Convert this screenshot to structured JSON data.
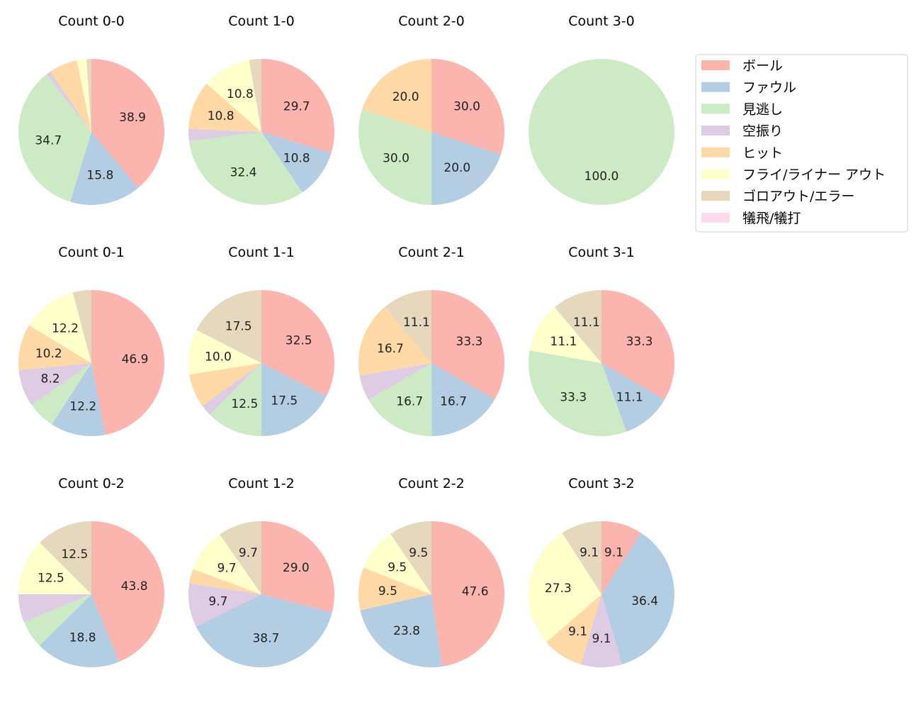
{
  "chart_data": {
    "type": "pie",
    "legend": {
      "placement": "top-right",
      "entries": [
        "ボール",
        "ファウル",
        "見逃し",
        "空振り",
        "ヒット",
        "フライ/ライナー アウト",
        "ゴロアウト/エラー",
        "犠飛/犠打"
      ]
    },
    "colors": [
      "#fbb4ae",
      "#b3cde3",
      "#ccebc5",
      "#decbe4",
      "#fed9a6",
      "#ffffcc",
      "#e5d8bd",
      "#fddaec"
    ],
    "direction": "clockwise from top",
    "pies": [
      {
        "title": "Count 0-0",
        "values": [
          38.9,
          15.8,
          34.7,
          1.1,
          6.3,
          2.1,
          1.1,
          0
        ]
      },
      {
        "title": "Count 1-0",
        "values": [
          29.7,
          10.8,
          32.4,
          2.7,
          10.8,
          10.8,
          2.7,
          0
        ]
      },
      {
        "title": "Count 2-0",
        "values": [
          30.0,
          20.0,
          30.0,
          0,
          20.0,
          0,
          0,
          0
        ]
      },
      {
        "title": "Count 3-0",
        "values": [
          0,
          0,
          100.0,
          0,
          0,
          0,
          0,
          0
        ]
      },
      {
        "title": "Count 0-1",
        "values": [
          46.9,
          12.2,
          6.1,
          8.2,
          10.2,
          12.2,
          4.1,
          0
        ]
      },
      {
        "title": "Count 1-1",
        "values": [
          32.5,
          17.5,
          12.5,
          2.5,
          7.5,
          10.0,
          17.5,
          0
        ]
      },
      {
        "title": "Count 2-1",
        "values": [
          33.3,
          16.7,
          16.7,
          5.6,
          16.7,
          0,
          11.1,
          0
        ]
      },
      {
        "title": "Count 3-1",
        "values": [
          33.3,
          11.1,
          33.3,
          0,
          0,
          11.1,
          11.1,
          0
        ]
      },
      {
        "title": "Count 0-2",
        "values": [
          43.8,
          18.8,
          6.2,
          6.2,
          0,
          12.5,
          12.5,
          0
        ]
      },
      {
        "title": "Count 1-2",
        "values": [
          29.0,
          38.7,
          0,
          9.7,
          3.2,
          9.7,
          9.7,
          0
        ]
      },
      {
        "title": "Count 2-2",
        "values": [
          47.6,
          23.8,
          0,
          0,
          9.5,
          9.5,
          9.5,
          0
        ]
      },
      {
        "title": "Count 3-2",
        "values": [
          9.1,
          36.4,
          0,
          9.1,
          9.1,
          27.3,
          9.1,
          0
        ]
      }
    ]
  }
}
